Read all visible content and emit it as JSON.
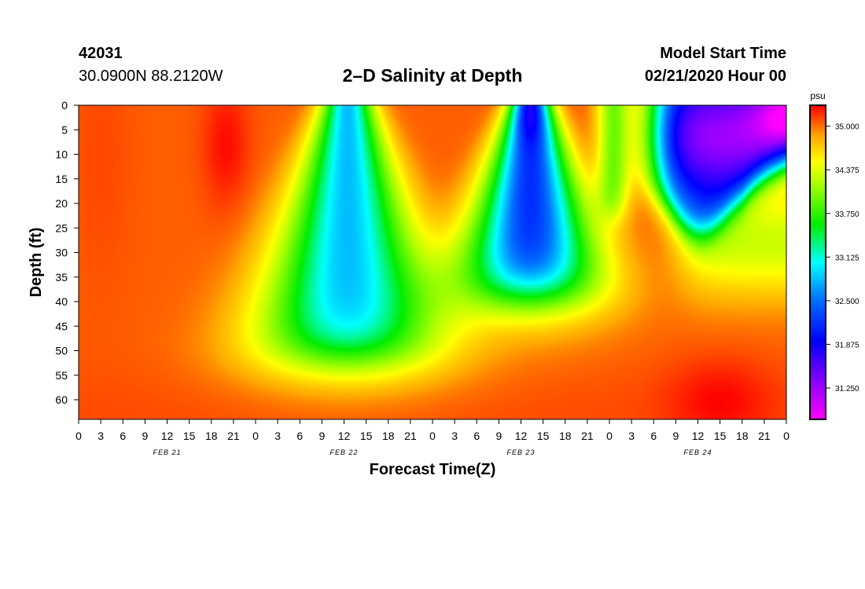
{
  "header": {
    "station_id": "42031",
    "station_location": "30.0900N 88.2120W",
    "title": "2–D Salinity at Depth",
    "start_label": "Model Start Time",
    "start_time": "02/21/2020 Hour 00"
  },
  "chart_data": {
    "type": "heatmap",
    "title": "2–D Salinity at Depth",
    "xlabel": "Forecast Time(Z)",
    "ylabel": "Depth (ft)",
    "x_range_hours": [
      0,
      96
    ],
    "y_range_ft": [
      0,
      64
    ],
    "x_ticks": [
      {
        "hour": 0,
        "label": "0"
      },
      {
        "hour": 3,
        "label": "3"
      },
      {
        "hour": 6,
        "label": "6"
      },
      {
        "hour": 9,
        "label": "9"
      },
      {
        "hour": 12,
        "label": "12"
      },
      {
        "hour": 15,
        "label": "15"
      },
      {
        "hour": 18,
        "label": "18"
      },
      {
        "hour": 21,
        "label": "21"
      },
      {
        "hour": 24,
        "label": "0"
      },
      {
        "hour": 27,
        "label": "3"
      },
      {
        "hour": 30,
        "label": "6"
      },
      {
        "hour": 33,
        "label": "9"
      },
      {
        "hour": 36,
        "label": "12"
      },
      {
        "hour": 39,
        "label": "15"
      },
      {
        "hour": 42,
        "label": "18"
      },
      {
        "hour": 45,
        "label": "21"
      },
      {
        "hour": 48,
        "label": "0"
      },
      {
        "hour": 51,
        "label": "3"
      },
      {
        "hour": 54,
        "label": "6"
      },
      {
        "hour": 57,
        "label": "9"
      },
      {
        "hour": 60,
        "label": "12"
      },
      {
        "hour": 63,
        "label": "15"
      },
      {
        "hour": 66,
        "label": "18"
      },
      {
        "hour": 69,
        "label": "21"
      },
      {
        "hour": 72,
        "label": "0"
      },
      {
        "hour": 75,
        "label": "3"
      },
      {
        "hour": 78,
        "label": "6"
      },
      {
        "hour": 81,
        "label": "9"
      },
      {
        "hour": 84,
        "label": "12"
      },
      {
        "hour": 87,
        "label": "15"
      },
      {
        "hour": 90,
        "label": "18"
      },
      {
        "hour": 93,
        "label": "21"
      },
      {
        "hour": 96,
        "label": "0"
      }
    ],
    "date_labels": [
      {
        "hour": 12,
        "label": "FEB 21"
      },
      {
        "hour": 36,
        "label": "FEB 22"
      },
      {
        "hour": 60,
        "label": "FEB 23"
      },
      {
        "hour": 84,
        "label": "FEB 24"
      }
    ],
    "y_ticks": [
      0,
      5,
      10,
      15,
      20,
      25,
      30,
      35,
      40,
      45,
      50,
      55,
      60
    ],
    "colorbar": {
      "unit": "psu",
      "min": 30.8,
      "max": 35.3,
      "ticks": [
        "35.000",
        "34.375",
        "33.750",
        "33.125",
        "32.500",
        "31.875",
        "31.250"
      ],
      "tick_values": [
        35.0,
        34.375,
        33.75,
        33.125,
        32.5,
        31.875,
        31.25
      ]
    },
    "features": [
      {
        "name": "salty core",
        "hour_center": 20,
        "depth_center_ft": 6,
        "salinity": 35.25
      },
      {
        "name": "fresh plume 1",
        "hour_center": 36.5,
        "depth_bottom_ft": 56,
        "min_salinity": 32.8
      },
      {
        "name": "fresh plume 2",
        "hour_center": 61,
        "depth_bottom_ft": 44,
        "min_salinity": 32.2
      },
      {
        "name": "fresh surface layer",
        "hour_start": 79,
        "depth_bottom_ft": 20,
        "min_salinity": 31.2
      },
      {
        "name": "deep salty patch",
        "hour_center": 87,
        "depth_center_ft": 58,
        "salinity": 35.2
      }
    ]
  }
}
